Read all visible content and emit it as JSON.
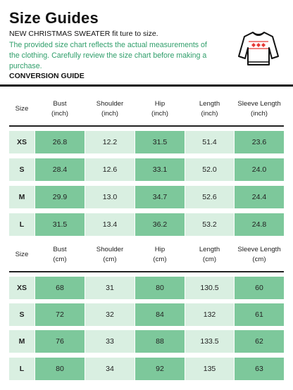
{
  "header": {
    "title": "Size Guides",
    "subtitle": "NEW CHRISTMAS SWEATER fit ture to size.",
    "note": "The provided size chart reflects the actual measurements of the clothing. Carefully review the size chart before making a purchase.",
    "conversion_label": "CONVERSION GUIDE",
    "icon": "sweater-icon"
  },
  "colors": {
    "accent": "#2f9e6a",
    "dark_cell": "#7dc89b",
    "light_cell": "#d9efe1"
  },
  "inch_table": {
    "columns": [
      "Size",
      "Bust\n(inch)",
      "Shoulder\n(inch)",
      "Hip\n(inch)",
      "Length\n(inch)",
      "Sleeve Length\n(inch)"
    ],
    "rows": [
      [
        "XS",
        "26.8",
        "12.2",
        "31.5",
        "51.4",
        "23.6"
      ],
      [
        "S",
        "28.4",
        "12.6",
        "33.1",
        "52.0",
        "24.0"
      ],
      [
        "M",
        "29.9",
        "13.0",
        "34.7",
        "52.6",
        "24.4"
      ],
      [
        "L",
        "31.5",
        "13.4",
        "36.2",
        "53.2",
        "24.8"
      ]
    ]
  },
  "cm_table": {
    "columns": [
      "Size",
      "Bust\n(cm)",
      "Shoulder\n(cm)",
      "Hip\n(cm)",
      "Length\n(cm)",
      "Sleeve Length\n(cm)"
    ],
    "rows": [
      [
        "XS",
        "68",
        "31",
        "80",
        "130.5",
        "60"
      ],
      [
        "S",
        "72",
        "32",
        "84",
        "132",
        "61"
      ],
      [
        "M",
        "76",
        "33",
        "88",
        "133.5",
        "62"
      ],
      [
        "L",
        "80",
        "34",
        "92",
        "135",
        "63"
      ]
    ]
  }
}
